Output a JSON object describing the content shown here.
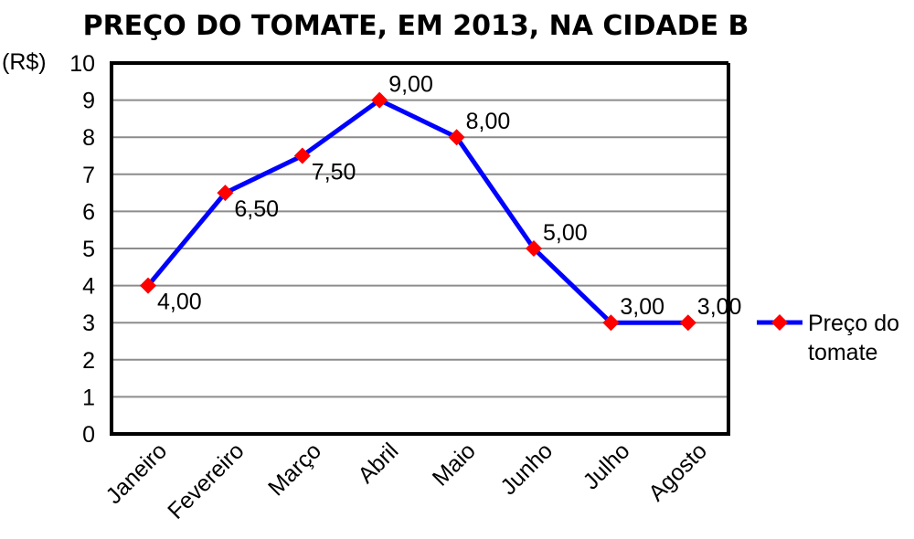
{
  "chart_data": {
    "type": "line",
    "title": "PREÇO DO TOMATE, EM 2013, NA CIDADE B",
    "ylabel": "(R$)",
    "xlabel": "",
    "categories": [
      "Janeiro",
      "Fevereiro",
      "Março",
      "Abril",
      "Maio",
      "Junho",
      "Julho",
      "Agosto"
    ],
    "ylim": [
      0,
      10
    ],
    "yticks": [
      "0",
      "1",
      "2",
      "3",
      "4",
      "5",
      "6",
      "7",
      "8",
      "9",
      "10"
    ],
    "grid": true,
    "legend_position": "right",
    "series": [
      {
        "name": "Preço do tomate",
        "legend_lines": [
          "Preço do",
          "tomate"
        ],
        "values": [
          4.0,
          6.5,
          7.5,
          9.0,
          8.0,
          5.0,
          3.0,
          3.0
        ],
        "labels": [
          "4,00",
          "6,50",
          "7,50",
          "9,00",
          "8,00",
          "5,00",
          "3,00",
          "3,00"
        ],
        "line_color": "#0000ff",
        "marker_color": "#ff0000",
        "marker": "diamond"
      }
    ]
  }
}
